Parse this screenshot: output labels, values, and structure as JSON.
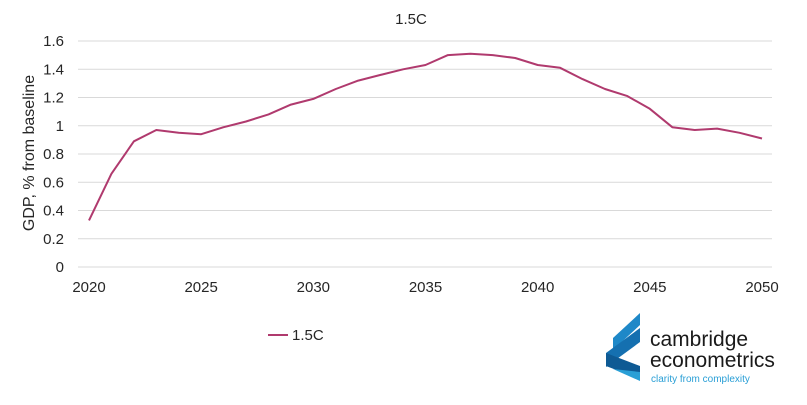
{
  "chart_data": {
    "type": "line",
    "title": "1.5C",
    "xlabel": "",
    "ylabel": "GDP, % from baseline",
    "xlim": [
      2020,
      2050
    ],
    "ylim": [
      0,
      1.6
    ],
    "xticks": [
      2020,
      2025,
      2030,
      2035,
      2040,
      2045,
      2050
    ],
    "yticks": [
      "0",
      "0.2",
      "0.4",
      "0.6",
      "0.8",
      "1",
      "1.2",
      "1.4",
      "1.6"
    ],
    "grid": "horizontal",
    "legend_position": "bottom-left",
    "x": [
      2020,
      2021,
      2022,
      2023,
      2024,
      2025,
      2026,
      2027,
      2028,
      2029,
      2030,
      2031,
      2032,
      2033,
      2034,
      2035,
      2036,
      2037,
      2038,
      2039,
      2040,
      2041,
      2042,
      2043,
      2044,
      2045,
      2046,
      2047,
      2048,
      2049,
      2050
    ],
    "series": [
      {
        "name": "1.5C",
        "color": "#b03a6e",
        "values": [
          0.33,
          0.66,
          0.89,
          0.97,
          0.95,
          0.94,
          0.99,
          1.03,
          1.08,
          1.15,
          1.19,
          1.26,
          1.32,
          1.36,
          1.4,
          1.43,
          1.5,
          1.51,
          1.5,
          1.48,
          1.43,
          1.41,
          1.33,
          1.26,
          1.21,
          1.12,
          0.99,
          0.97,
          0.98,
          0.95,
          0.91
        ]
      }
    ]
  },
  "logo": {
    "line1": "cambridge",
    "line2": "econometrics",
    "tagline": "clarity from complexity"
  }
}
